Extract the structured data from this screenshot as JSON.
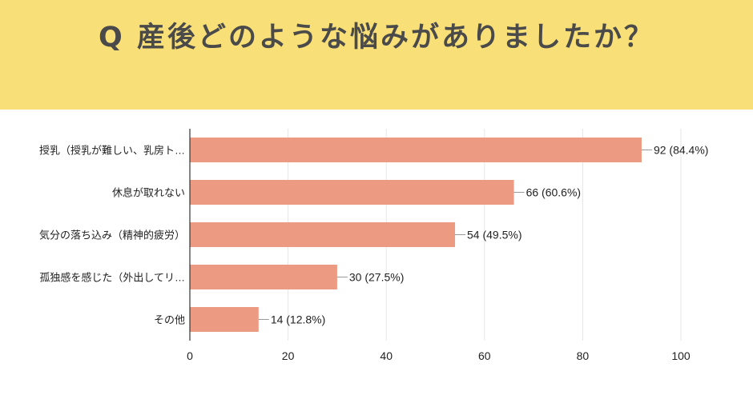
{
  "header": {
    "title": "Q 産後どのような悩みがありましたか？"
  },
  "colors": {
    "banner": "#f8df77",
    "bar": "#ec9b82",
    "grid": "#e6e6e6",
    "axis": "#333333"
  },
  "chart_data": {
    "type": "bar",
    "orientation": "horizontal",
    "title": "Q 産後どのような悩みがありましたか？",
    "categories": [
      "授乳（授乳が難しい、乳房ト…",
      "休息が取れない",
      "気分の落ち込み（精神的疲労）",
      "孤独感を感じた（外出してリ…",
      "その他"
    ],
    "values": [
      92,
      66,
      54,
      30,
      14
    ],
    "value_labels": [
      "92 (84.4%)",
      "66 (60.6%)",
      "54 (49.5%)",
      "30 (27.5%)",
      "14 (12.8%)"
    ],
    "xlim": [
      0,
      100
    ],
    "xticks": [
      0,
      20,
      40,
      60,
      80,
      100
    ],
    "xtick_labels": [
      "0",
      "20",
      "40",
      "60",
      "80",
      "100"
    ],
    "xlabel": "",
    "ylabel": "",
    "grid": true,
    "legend": "none"
  }
}
